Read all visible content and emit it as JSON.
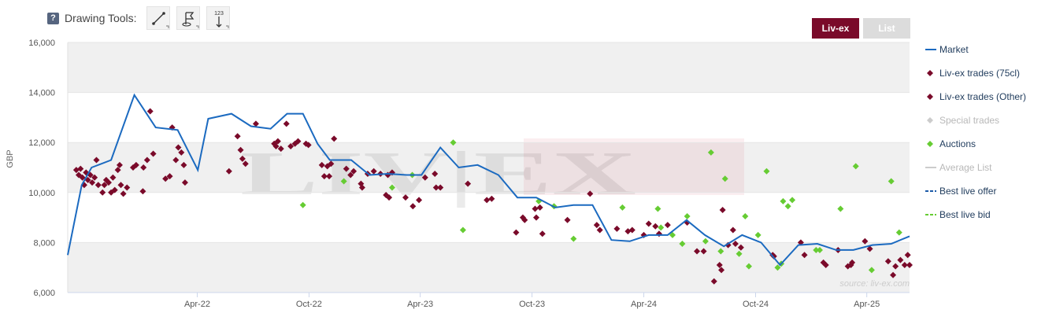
{
  "toolbar": {
    "title": "Drawing Tools:",
    "help_icon": "?",
    "tools": [
      {
        "name": "line-tool-icon",
        "label": ""
      },
      {
        "name": "flag-tool-icon",
        "label": ""
      },
      {
        "name": "measure-tool-icon",
        "label": "123"
      }
    ]
  },
  "tabs": {
    "active": "Liv-ex",
    "inactive": "List"
  },
  "colors": {
    "market_line": "#1b6ac0",
    "livex_trades": "#7a0a2a",
    "auctions": "#66cc33",
    "special_trades": "#cccccc",
    "band": "#f0f0f0",
    "active_tab": "#7a0a2a"
  },
  "watermark": {
    "logo": "LIV|EX",
    "source": "source: liv-ex.com"
  },
  "legend": {
    "placement": "right",
    "items": [
      {
        "label": "Market",
        "symbol": "line",
        "color": "#1b6ac0",
        "dim": false
      },
      {
        "label": "Liv-ex trades (75cl)",
        "symbol": "diamond",
        "color": "#7a0a2a",
        "dim": false
      },
      {
        "label": "Liv-ex trades (Other)",
        "symbol": "diamond",
        "color": "#7a0a2a",
        "dim": false
      },
      {
        "label": "Special trades",
        "symbol": "diamond",
        "color": "#cccccc",
        "dim": true
      },
      {
        "label": "Auctions",
        "symbol": "diamond",
        "color": "#66cc33",
        "dim": false
      },
      {
        "label": "Average List",
        "symbol": "line",
        "color": "#cccccc",
        "dim": true
      },
      {
        "label": "Best live offer",
        "symbol": "dash",
        "color": "#1b5aa8",
        "dim": false
      },
      {
        "label": "Best live bid",
        "symbol": "dash",
        "color": "#66cc33",
        "dim": false
      }
    ]
  },
  "chart_data": {
    "type": "line",
    "ylabel": "GBP",
    "ylim": [
      6000,
      16000
    ],
    "yticks": [
      6000,
      8000,
      10000,
      12000,
      14000,
      16000
    ],
    "ytick_labels": [
      "6,000",
      "8,000",
      "10,000",
      "12,000",
      "14,000",
      "16,000"
    ],
    "xlim": [
      "2021-09-01",
      "2025-06-10"
    ],
    "xticks": [
      "2022-04-01",
      "2022-10-01",
      "2023-04-01",
      "2023-10-01",
      "2024-04-01",
      "2024-10-01",
      "2025-04-01"
    ],
    "xtick_labels": [
      "Apr-22",
      "Oct-22",
      "Apr-23",
      "Oct-23",
      "Apr-24",
      "Oct-24",
      "Apr-25"
    ],
    "banded_background": true,
    "series": [
      {
        "name": "Market",
        "type": "line",
        "points": [
          [
            "2021-09-01",
            7500
          ],
          [
            "2021-09-24",
            10300
          ],
          [
            "2021-10-10",
            11000
          ],
          [
            "2021-11-11",
            11300
          ],
          [
            "2021-12-19",
            13900
          ],
          [
            "2022-01-23",
            12600
          ],
          [
            "2022-02-28",
            12500
          ],
          [
            "2022-04-02",
            10900
          ],
          [
            "2022-04-19",
            12950
          ],
          [
            "2022-05-27",
            13150
          ],
          [
            "2022-06-28",
            12650
          ],
          [
            "2022-07-30",
            12550
          ],
          [
            "2022-08-26",
            13150
          ],
          [
            "2022-09-21",
            13150
          ],
          [
            "2022-10-15",
            11950
          ],
          [
            "2022-11-04",
            11300
          ],
          [
            "2022-12-09",
            11300
          ],
          [
            "2023-01-08",
            10700
          ],
          [
            "2023-02-07",
            10750
          ],
          [
            "2023-03-10",
            10700
          ],
          [
            "2023-04-03",
            10700
          ],
          [
            "2023-05-04",
            11800
          ],
          [
            "2023-06-03",
            11000
          ],
          [
            "2023-07-04",
            11100
          ],
          [
            "2023-08-07",
            10700
          ],
          [
            "2023-09-07",
            9800
          ],
          [
            "2023-10-08",
            9800
          ],
          [
            "2023-11-08",
            9400
          ],
          [
            "2023-12-08",
            9500
          ],
          [
            "2024-01-08",
            9500
          ],
          [
            "2024-02-08",
            8100
          ],
          [
            "2024-03-09",
            8050
          ],
          [
            "2024-04-09",
            8300
          ],
          [
            "2024-05-10",
            8300
          ],
          [
            "2024-06-10",
            8900
          ],
          [
            "2024-07-10",
            8300
          ],
          [
            "2024-08-10",
            7850
          ],
          [
            "2024-09-09",
            8300
          ],
          [
            "2024-10-10",
            8000
          ],
          [
            "2024-11-10",
            7100
          ],
          [
            "2024-12-10",
            7900
          ],
          [
            "2025-01-10",
            7950
          ],
          [
            "2025-02-10",
            7700
          ],
          [
            "2025-03-10",
            7700
          ],
          [
            "2025-04-10",
            7900
          ],
          [
            "2025-05-11",
            7950
          ],
          [
            "2025-06-10",
            8250
          ]
        ]
      },
      {
        "name": "Liv-ex trades (75cl)",
        "type": "scatter",
        "points": [
          [
            "2021-09-15",
            10900
          ],
          [
            "2021-09-19",
            10700
          ],
          [
            "2021-09-22",
            10950
          ],
          [
            "2021-09-25",
            10600
          ],
          [
            "2021-09-28",
            10300
          ],
          [
            "2021-10-01",
            10800
          ],
          [
            "2021-10-04",
            10500
          ],
          [
            "2021-10-08",
            10700
          ],
          [
            "2021-10-11",
            10400
          ],
          [
            "2021-10-15",
            10600
          ],
          [
            "2021-10-18",
            11300
          ],
          [
            "2021-10-21",
            10300
          ],
          [
            "2021-10-28",
            10000
          ],
          [
            "2021-10-31",
            10300
          ],
          [
            "2021-11-03",
            10500
          ],
          [
            "2021-11-07",
            10400
          ],
          [
            "2021-11-11",
            10000
          ],
          [
            "2021-11-14",
            10600
          ],
          [
            "2021-11-17",
            10100
          ],
          [
            "2021-11-22",
            10900
          ],
          [
            "2021-11-25",
            11100
          ],
          [
            "2021-11-27",
            10300
          ],
          [
            "2021-12-01",
            9950
          ],
          [
            "2021-12-07",
            10200
          ],
          [
            "2021-12-17",
            11000
          ],
          [
            "2021-12-22",
            11100
          ],
          [
            "2022-01-02",
            10050
          ],
          [
            "2022-01-03",
            11000
          ],
          [
            "2022-01-09",
            11300
          ],
          [
            "2022-01-14",
            13250
          ],
          [
            "2022-01-19",
            11550
          ],
          [
            "2022-02-08",
            10550
          ],
          [
            "2022-02-15",
            10650
          ],
          [
            "2022-02-19",
            12600
          ],
          [
            "2022-02-25",
            11300
          ],
          [
            "2022-03-01",
            11800
          ],
          [
            "2022-03-06",
            11600
          ],
          [
            "2022-03-10",
            11100
          ],
          [
            "2022-03-12",
            10400
          ],
          [
            "2022-05-23",
            10850
          ],
          [
            "2022-06-06",
            12250
          ],
          [
            "2022-06-11",
            11700
          ],
          [
            "2022-06-14",
            11350
          ],
          [
            "2022-06-19",
            11150
          ],
          [
            "2022-07-06",
            12750
          ],
          [
            "2022-08-05",
            11950
          ],
          [
            "2022-08-08",
            11850
          ],
          [
            "2022-08-11",
            12050
          ],
          [
            "2022-08-16",
            11750
          ],
          [
            "2022-08-25",
            12750
          ],
          [
            "2022-09-01",
            11850
          ],
          [
            "2022-09-08",
            11950
          ],
          [
            "2022-09-13",
            12050
          ],
          [
            "2022-09-26",
            11950
          ],
          [
            "2022-09-30",
            11900
          ],
          [
            "2022-10-22",
            11100
          ],
          [
            "2022-10-26",
            10650
          ],
          [
            "2022-10-31",
            11050
          ],
          [
            "2022-11-03",
            10650
          ],
          [
            "2022-11-06",
            11150
          ],
          [
            "2022-11-11",
            12150
          ],
          [
            "2022-12-01",
            10950
          ],
          [
            "2022-12-08",
            10700
          ],
          [
            "2022-12-13",
            10850
          ],
          [
            "2022-12-25",
            10350
          ],
          [
            "2022-12-27",
            10200
          ],
          [
            "2023-01-05",
            10750
          ],
          [
            "2023-01-15",
            10850
          ],
          [
            "2023-01-26",
            10750
          ],
          [
            "2023-02-04",
            9900
          ],
          [
            "2023-02-07",
            10700
          ],
          [
            "2023-02-09",
            9800
          ],
          [
            "2023-02-14",
            10800
          ],
          [
            "2023-03-08",
            9800
          ],
          [
            "2023-03-20",
            9450
          ],
          [
            "2023-03-30",
            9700
          ],
          [
            "2023-04-09",
            10600
          ],
          [
            "2023-04-25",
            10750
          ],
          [
            "2023-04-27",
            10200
          ],
          [
            "2023-05-04",
            10200
          ],
          [
            "2023-06-18",
            10350
          ],
          [
            "2023-07-19",
            9700
          ],
          [
            "2023-07-27",
            9750
          ],
          [
            "2023-09-05",
            8400
          ],
          [
            "2023-09-16",
            9000
          ],
          [
            "2023-09-19",
            8900
          ],
          [
            "2023-10-06",
            9350
          ],
          [
            "2023-10-08",
            9000
          ],
          [
            "2023-10-14",
            9400
          ],
          [
            "2023-10-18",
            8350
          ],
          [
            "2023-11-28",
            8900
          ],
          [
            "2024-01-04",
            9950
          ],
          [
            "2024-01-15",
            8700
          ],
          [
            "2024-01-20",
            8500
          ],
          [
            "2024-02-17",
            8550
          ],
          [
            "2024-03-06",
            8450
          ],
          [
            "2024-03-13",
            8500
          ],
          [
            "2024-04-01",
            8300
          ],
          [
            "2024-04-09",
            8750
          ],
          [
            "2024-04-20",
            8650
          ],
          [
            "2024-04-26",
            8350
          ],
          [
            "2024-05-10",
            8700
          ],
          [
            "2024-06-11",
            8800
          ],
          [
            "2024-06-27",
            7650
          ],
          [
            "2024-07-08",
            7650
          ],
          [
            "2024-07-25",
            6450
          ],
          [
            "2024-08-03",
            7100
          ],
          [
            "2024-08-06",
            6900
          ],
          [
            "2024-08-08",
            9300
          ],
          [
            "2024-08-17",
            7900
          ],
          [
            "2024-08-25",
            8500
          ],
          [
            "2024-08-29",
            7950
          ],
          [
            "2024-09-07",
            7800
          ],
          [
            "2024-10-29",
            7500
          ],
          [
            "2024-10-31",
            7450
          ],
          [
            "2024-12-14",
            8000
          ],
          [
            "2024-12-20",
            7500
          ],
          [
            "2025-01-20",
            7200
          ],
          [
            "2025-01-24",
            7100
          ],
          [
            "2025-02-13",
            7700
          ],
          [
            "2025-03-01",
            7050
          ],
          [
            "2025-03-06",
            7100
          ],
          [
            "2025-03-08",
            7200
          ],
          [
            "2025-03-29",
            8050
          ],
          [
            "2025-04-06",
            7750
          ],
          [
            "2025-05-06",
            7250
          ],
          [
            "2025-05-14",
            6700
          ],
          [
            "2025-05-18",
            7050
          ],
          [
            "2025-05-26",
            7300
          ],
          [
            "2025-06-02",
            7100
          ],
          [
            "2025-06-07",
            7500
          ],
          [
            "2025-06-10",
            7100
          ]
        ]
      },
      {
        "name": "Auctions",
        "type": "scatter",
        "points": [
          [
            "2022-09-21",
            9500
          ],
          [
            "2022-11-27",
            10450
          ],
          [
            "2023-02-14",
            10200
          ],
          [
            "2023-03-19",
            10700
          ],
          [
            "2023-05-25",
            12000
          ],
          [
            "2023-06-10",
            8500
          ],
          [
            "2023-10-12",
            9650
          ],
          [
            "2023-11-06",
            9450
          ],
          [
            "2023-12-08",
            8150
          ],
          [
            "2024-02-26",
            9400
          ],
          [
            "2024-04-24",
            9350
          ],
          [
            "2024-04-29",
            8600
          ],
          [
            "2024-05-18",
            8300
          ],
          [
            "2024-06-03",
            7950
          ],
          [
            "2024-06-11",
            9050
          ],
          [
            "2024-07-11",
            8050
          ],
          [
            "2024-07-20",
            11600
          ],
          [
            "2024-08-05",
            7650
          ],
          [
            "2024-08-12",
            10550
          ],
          [
            "2024-09-04",
            7550
          ],
          [
            "2024-09-14",
            9050
          ],
          [
            "2024-09-20",
            7050
          ],
          [
            "2024-10-05",
            8300
          ],
          [
            "2024-10-19",
            10850
          ],
          [
            "2024-11-06",
            7000
          ],
          [
            "2024-11-12",
            7150
          ],
          [
            "2024-11-15",
            9650
          ],
          [
            "2024-11-23",
            9450
          ],
          [
            "2024-11-30",
            9700
          ],
          [
            "2025-01-08",
            7700
          ],
          [
            "2025-01-14",
            7700
          ],
          [
            "2025-02-17",
            9350
          ],
          [
            "2025-03-14",
            11050
          ],
          [
            "2025-04-09",
            6900
          ],
          [
            "2025-05-11",
            10450
          ],
          [
            "2025-05-24",
            8400
          ]
        ]
      }
    ]
  }
}
